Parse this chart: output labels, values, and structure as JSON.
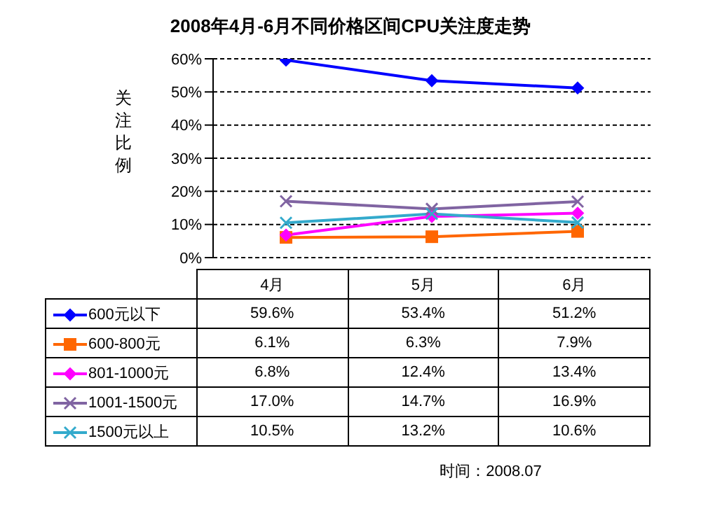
{
  "chart_data": {
    "type": "line",
    "title": "2008年4月-6月不同价格区间CPU关注度走势",
    "ylabel": "关注比例",
    "categories": [
      "4月",
      "5月",
      "6月"
    ],
    "series": [
      {
        "name": "600元以下",
        "color": "#0000ff",
        "marker": "diamond",
        "values": [
          59.6,
          53.4,
          51.2
        ],
        "value_labels": [
          "59.6%",
          "53.4%",
          "51.2%"
        ]
      },
      {
        "name": "600-800元",
        "color": "#ff6600",
        "marker": "square",
        "values": [
          6.1,
          6.3,
          7.9
        ],
        "value_labels": [
          "6.1%",
          "6.3%",
          "7.9%"
        ]
      },
      {
        "name": "801-1000元",
        "color": "#ff00ff",
        "marker": "diamond",
        "values": [
          6.8,
          12.4,
          13.4
        ],
        "value_labels": [
          "6.8%",
          "12.4%",
          "13.4%"
        ]
      },
      {
        "name": "1001-1500元",
        "color": "#8064a2",
        "marker": "cross",
        "values": [
          17.0,
          14.7,
          16.9
        ],
        "value_labels": [
          "17.0%",
          "14.7%",
          "16.9%"
        ]
      },
      {
        "name": "1500元以上",
        "color": "#33aacc",
        "marker": "cross",
        "values": [
          10.5,
          13.2,
          10.6
        ],
        "value_labels": [
          "10.5%",
          "13.2%",
          "10.6%"
        ]
      }
    ],
    "ylim": [
      0,
      60
    ],
    "yticks": [
      {
        "value": 0,
        "label": "0%"
      },
      {
        "value": 10,
        "label": "10%"
      },
      {
        "value": 20,
        "label": "20%"
      },
      {
        "value": 30,
        "label": "30%"
      },
      {
        "value": 40,
        "label": "40%"
      },
      {
        "value": 50,
        "label": "50%"
      },
      {
        "value": 60,
        "label": "60%"
      }
    ],
    "grid": "y",
    "legend": "bottom",
    "line_style": "solid",
    "annotations": [
      "时间：2008.07"
    ]
  }
}
